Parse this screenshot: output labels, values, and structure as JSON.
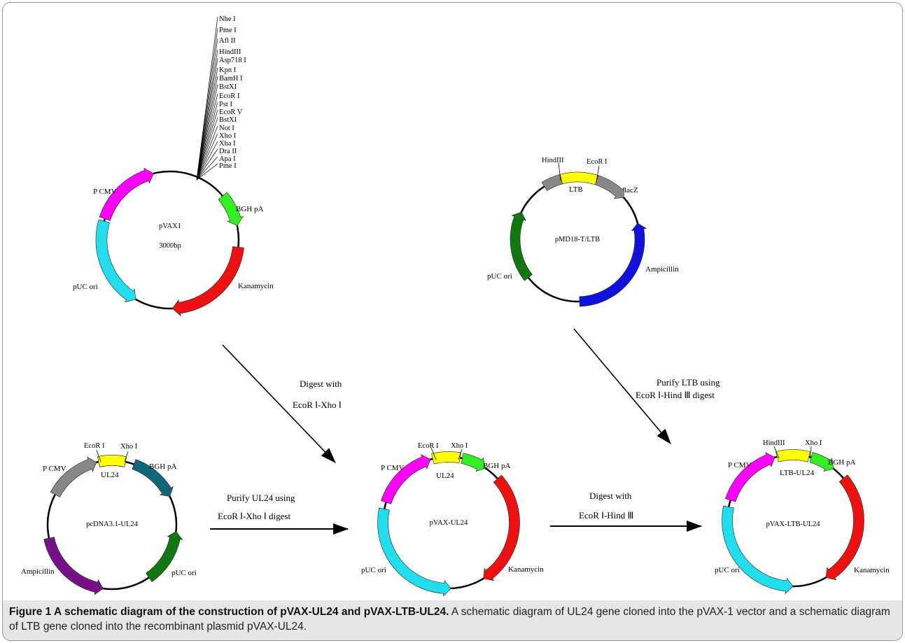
{
  "pvax1": {
    "name": "pVAX1",
    "size": "3000bp",
    "sites": [
      "Nhe I",
      "Pme I",
      "Afl II",
      "HindIII",
      "Asp718 I",
      "Kpn I",
      "BamH I",
      "BstXI",
      "EcoR I",
      "Pst I",
      "EcoR V",
      "BstXI",
      "Not I",
      "Xho I",
      "Xba I",
      "Dra II",
      "Apa I",
      "Pme I"
    ],
    "labels": {
      "pcmv": "P CMV",
      "bgh": "BGH pA",
      "kan": "Kanamycin",
      "ori": "pUC ori"
    }
  },
  "pmd18": {
    "name": "pMD18-T/LTB",
    "labels": {
      "hind": "HindIII",
      "ecor": "EcoR I",
      "ltb": "LTB",
      "lacz": "lacZ",
      "amp": "Ampicillin",
      "ori": "pUC ori"
    }
  },
  "pcdna": {
    "name": "pcDNA3.1-UL24",
    "labels": {
      "ecor": "EcoR I",
      "xho": "Xho I",
      "ul24": "UL24",
      "pcmv": "P CMV",
      "bgh": "BGH pA",
      "amp": "Ampicillin",
      "ori": "pUC ori"
    }
  },
  "pvaxul24": {
    "name": "pVAX-UL24",
    "labels": {
      "ecor": "EcoR I",
      "xho": "Xho I",
      "ul24": "UL24",
      "pcmv": "P CMV",
      "bgh": "BGH pA",
      "kan": "Kanamycin",
      "ori": "pUC ori"
    }
  },
  "pvaxltb": {
    "name": "pVAX-LTB-UL24",
    "labels": {
      "hind": "HindIII",
      "xho": "Xho I",
      "ltbul24": "LTB-UL24",
      "pcmv": "P CMV",
      "bgh": "BGH pA",
      "kan": "Kanamycin",
      "ori": "pUC ori"
    }
  },
  "steps": {
    "digest1_l1": "Digest with",
    "digest1_l2": "EcoR Ⅰ-Xho Ⅰ",
    "purify_ltb_l1": "Purify LTB using",
    "purify_ltb_l2": "EcoR Ⅰ-Hind Ⅲ digest",
    "purify_ul24_l1": "Purify UL24 using",
    "purify_ul24_l2": "EcoR Ⅰ-Xho Ⅰ digest",
    "digest2_l1": "Digest with",
    "digest2_l2": "EcoR Ⅰ-Hind Ⅲ"
  },
  "caption": {
    "title": "Figure 1 A schematic diagram of the construction of pVAX-UL24 and pVAX-LTB-UL24.",
    "text": "A schematic diagram of UL24 gene cloned into the pVAX-1 vector and a schematic diagram of LTB gene cloned into the recombinant plasmid pVAX-UL24."
  },
  "colors": {
    "magenta": "#ff00ff",
    "green": "#33ee22",
    "red": "#ee1111",
    "cyan": "#22ddee",
    "gray": "#888888",
    "yellow": "#ffff00",
    "blue": "#1111dd",
    "darkgreen": "#117711",
    "teal": "#116677",
    "purple": "#771188"
  }
}
